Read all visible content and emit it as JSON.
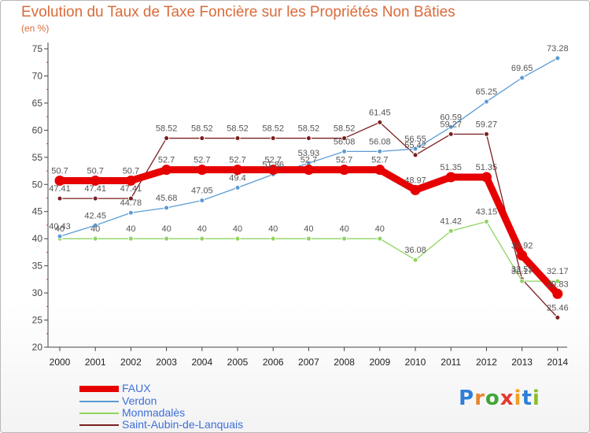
{
  "title": "Evolution du Taux de Taxe Foncière sur les Propriétés Non Bâties",
  "subtitle": "(en %)",
  "logo_text": "Proxiti",
  "chart_data": {
    "type": "line",
    "title": "Evolution du Taux de Taxe Foncière sur les Propriétés Non Bâties",
    "ylabel": "(en %)",
    "xlabel": "",
    "categories": [
      "2000",
      "2001",
      "2002",
      "2003",
      "2004",
      "2005",
      "2006",
      "2007",
      "2008",
      "2009",
      "2010",
      "2011",
      "2012",
      "2013",
      "2014"
    ],
    "ylim": [
      20,
      75
    ],
    "yticks": [
      20,
      25,
      30,
      35,
      40,
      45,
      50,
      55,
      60,
      65,
      70,
      75
    ],
    "grid": false,
    "legend_position": "bottom-left",
    "series": [
      {
        "name": "FAUX",
        "color": "#e60000",
        "values": [
          50.7,
          50.7,
          50.7,
          52.7,
          52.7,
          52.7,
          52.7,
          52.7,
          52.7,
          52.7,
          48.97,
          51.35,
          51.35,
          36.92,
          29.83
        ],
        "labels": [
          "50.7",
          "50.7",
          "50.7",
          "52.7",
          "52.7",
          "52.7",
          "52.7",
          "52.7",
          "52.7",
          "52.7",
          "48.97",
          "51.35",
          "51.35",
          "36.92",
          "29.83"
        ]
      },
      {
        "name": "Verdon",
        "color": "#5b9bd5",
        "values": [
          40.43,
          42.45,
          44.78,
          45.68,
          47.05,
          49.4,
          51.86,
          53.93,
          56.08,
          56.08,
          56.55,
          60.59,
          65.25,
          69.65,
          73.28
        ],
        "labels": [
          "40.43",
          "42.45",
          "44.78",
          "45.68",
          "47.05",
          "49.4",
          "51.86",
          "53.93",
          "56.08",
          "56.08",
          "56.55",
          "60.59",
          "65.25",
          "69.65",
          "73.28"
        ]
      },
      {
        "name": "Monmadalès",
        "color": "#8fd460",
        "values": [
          40,
          40,
          40,
          40,
          40,
          40,
          40,
          40,
          40,
          40,
          36.08,
          41.42,
          43.15,
          32.17,
          32.17
        ],
        "labels": [
          "40",
          "40",
          "40",
          "40",
          "40",
          "40",
          "40",
          "40",
          "40",
          "40",
          "36.08",
          "41.42",
          "43.15",
          "32.17",
          "32.17"
        ]
      },
      {
        "name": "Saint-Aubin-de-Lanquais",
        "color": "#7a1f1f",
        "values": [
          47.41,
          47.41,
          47.41,
          58.52,
          58.52,
          58.52,
          58.52,
          58.52,
          58.52,
          61.45,
          55.42,
          59.27,
          59.27,
          32.52,
          25.46
        ],
        "labels": [
          "47.41",
          "47.41",
          "47.41",
          "58.52",
          "58.52",
          "58.52",
          "58.52",
          "58.52",
          "58.52",
          "61.45",
          "55.42",
          "59.27",
          "59.27",
          "32.52",
          "25.46"
        ]
      }
    ]
  }
}
